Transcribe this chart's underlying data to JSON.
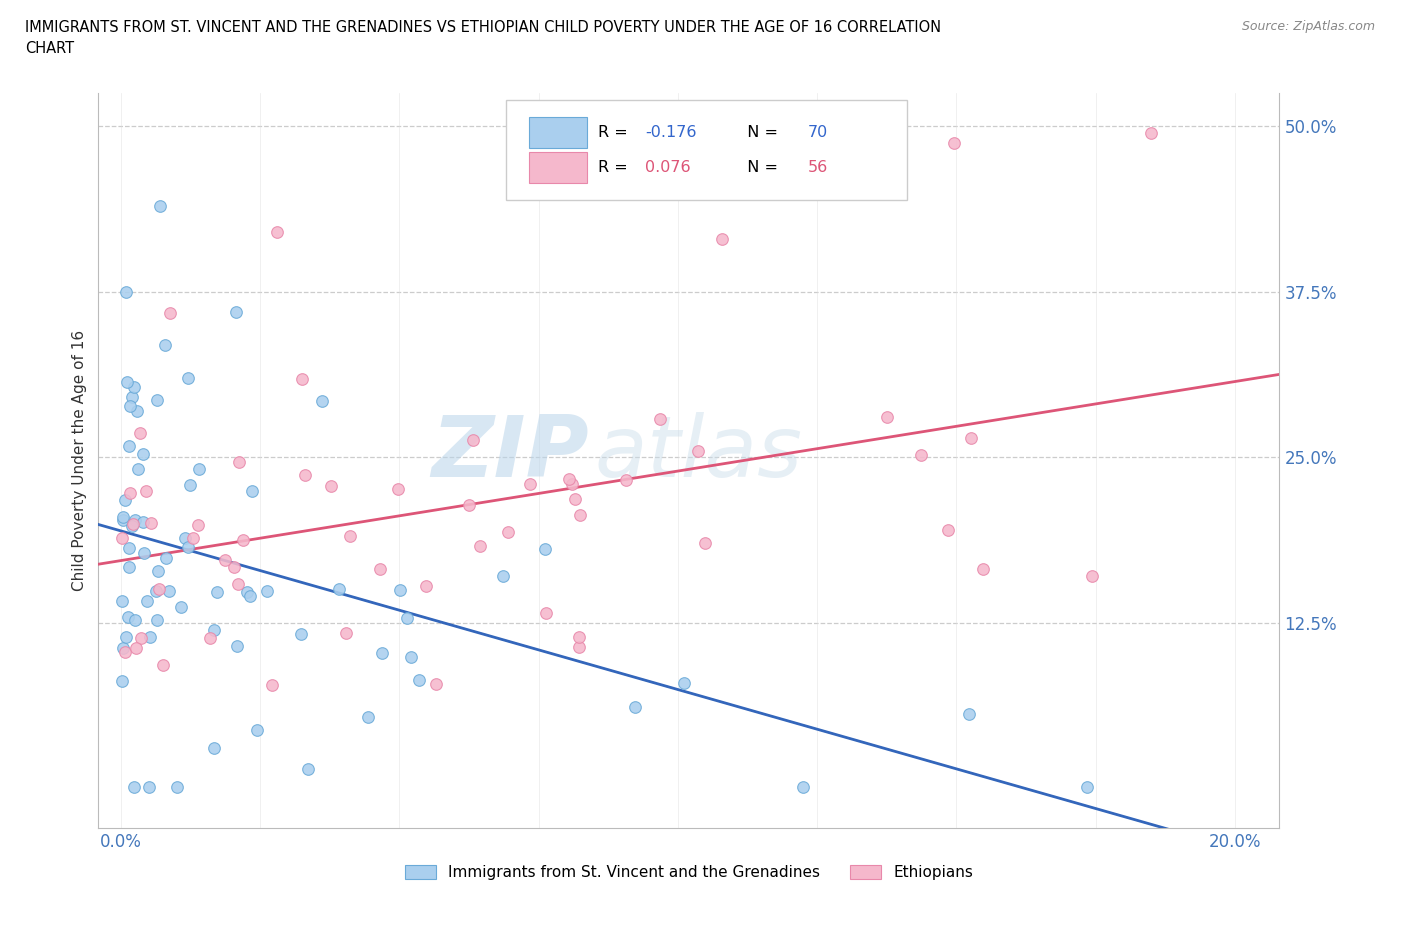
{
  "title_line1": "IMMIGRANTS FROM ST. VINCENT AND THE GRENADINES VS ETHIOPIAN CHILD POVERTY UNDER THE AGE OF 16 CORRELATION",
  "title_line2": "CHART",
  "source": "Source: ZipAtlas.com",
  "ylabel": "Child Poverty Under the Age of 16",
  "blue_R": -0.176,
  "blue_N": 70,
  "pink_R": 0.076,
  "pink_N": 56,
  "blue_color": "#aacfee",
  "blue_edge": "#6aaad8",
  "pink_color": "#f5b8cc",
  "pink_edge": "#e888aa",
  "blue_line_color": "#3366bb",
  "pink_line_color": "#dd5577",
  "blue_trend_dash": [
    6,
    3
  ],
  "pink_trend_solid": true,
  "legend_label_blue": "Immigrants from St. Vincent and the Grenadines",
  "legend_label_pink": "Ethiopians",
  "ytick_vals": [
    0.0,
    0.125,
    0.25,
    0.375,
    0.5
  ],
  "ytick_labels": [
    "",
    "12.5%",
    "25.0%",
    "37.5%",
    "50.0%"
  ],
  "tick_color": "#4477bb",
  "watermark_zip": "ZIP",
  "watermark_atlas": "atlas",
  "r_color": "#3366cc",
  "pink_r_color": "#dd5577",
  "xmin": 0.0,
  "xmax": 0.2,
  "ymin": 0.0,
  "ymax": 0.5
}
